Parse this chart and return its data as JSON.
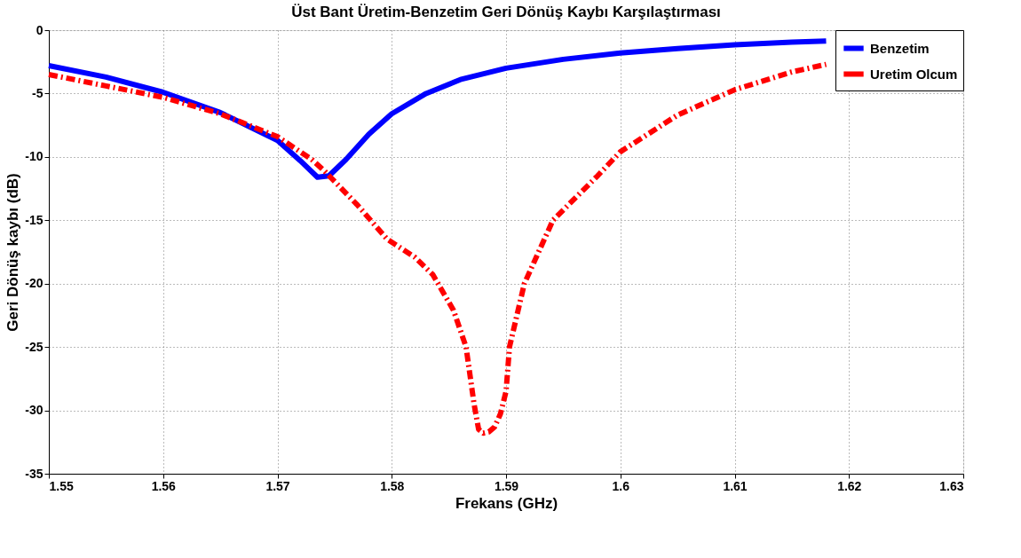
{
  "chart_data": {
    "type": "line",
    "title": "Üst Bant Üretim-Benzetim Geri Dönüş Kaybı Karşılaştırması",
    "xlabel": "Frekans (GHz)",
    "ylabel": "Geri Dönüş kaybı (dB)",
    "xlim": [
      1.55,
      1.63
    ],
    "xticks": [
      1.55,
      1.56,
      1.57,
      1.58,
      1.59,
      1.6,
      1.61,
      1.62,
      1.63
    ],
    "ylim": [
      -35,
      0
    ],
    "yticks": [
      -35,
      -30,
      -25,
      -20,
      -15,
      -10,
      -5,
      0
    ],
    "grid": true,
    "legend": "top right",
    "marker": "none",
    "series": [
      {
        "name": "Benzetim",
        "color": "#0000ff",
        "line_style": "solid",
        "x": [
          1.55,
          1.555,
          1.56,
          1.565,
          1.57,
          1.572,
          1.5735,
          1.5745,
          1.576,
          1.578,
          1.58,
          1.583,
          1.586,
          1.59,
          1.595,
          1.6,
          1.605,
          1.61,
          1.615,
          1.618
        ],
        "values": [
          -2.8,
          -3.7,
          -4.9,
          -6.5,
          -8.7,
          -10.3,
          -11.6,
          -11.5,
          -10.2,
          -8.2,
          -6.6,
          -5.0,
          -3.9,
          -3.0,
          -2.3,
          -1.8,
          -1.45,
          -1.15,
          -0.95,
          -0.85
        ]
      },
      {
        "name": "Uretim Olcum",
        "color": "#ff0000",
        "line_style": "dashdot",
        "x": [
          1.55,
          1.555,
          1.56,
          1.565,
          1.57,
          1.573,
          1.5741,
          1.577,
          1.5796,
          1.582,
          1.5836,
          1.5854,
          1.5865,
          1.5872,
          1.5876,
          1.588,
          1.5885,
          1.589,
          1.5895,
          1.59,
          1.5903,
          1.5916,
          1.5941,
          1.598,
          1.6,
          1.605,
          1.61,
          1.615,
          1.618
        ],
        "values": [
          -3.5,
          -4.4,
          -5.3,
          -6.6,
          -8.4,
          -10.2,
          -11.1,
          -13.8,
          -16.5,
          -17.9,
          -19.3,
          -22.1,
          -25.0,
          -29.5,
          -31.5,
          -31.8,
          -31.7,
          -31.3,
          -30.3,
          -28.5,
          -25.0,
          -20.0,
          -15.0,
          -11.5,
          -9.6,
          -6.7,
          -4.7,
          -3.3,
          -2.7
        ]
      }
    ]
  }
}
